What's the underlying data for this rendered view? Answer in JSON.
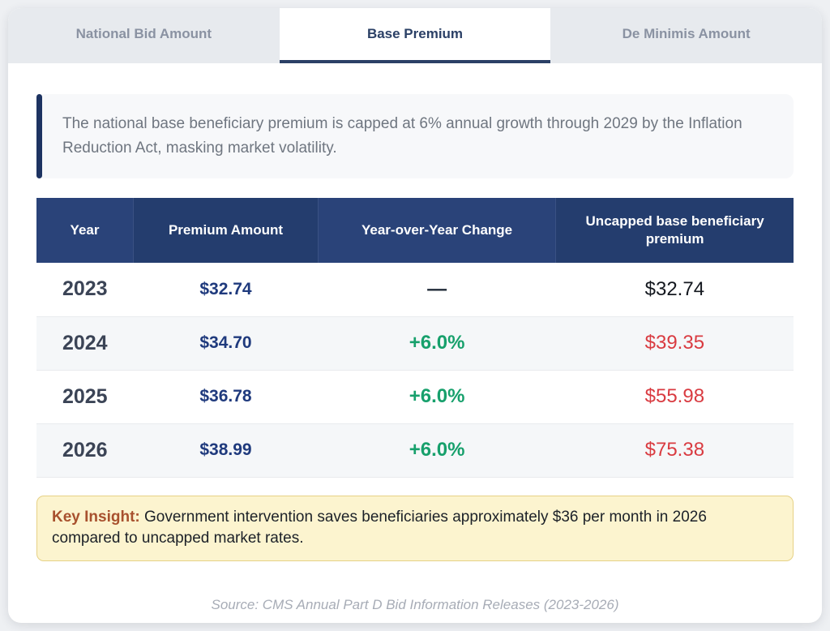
{
  "tabs": [
    {
      "label": "National Bid Amount",
      "active": false
    },
    {
      "label": "Base Premium",
      "active": true
    },
    {
      "label": "De Minimis Amount",
      "active": false
    }
  ],
  "callout": {
    "text": "The national base beneficiary premium is capped at 6% annual growth through 2029 by the Inflation Reduction Act, masking market volatility."
  },
  "table": {
    "columns": [
      "Year",
      "Premium Amount",
      "Year-over-Year Change",
      "Uncapped base beneficiary premium"
    ],
    "rows": [
      {
        "year": "2023",
        "premium": "$32.74",
        "yoy": "—",
        "yoy_style": "none",
        "uncapped": "$32.74",
        "uncapped_style": "neutral"
      },
      {
        "year": "2024",
        "premium": "$34.70",
        "yoy": "+6.0%",
        "yoy_style": "up",
        "uncapped": "$39.35",
        "uncapped_style": "red"
      },
      {
        "year": "2025",
        "premium": "$36.78",
        "yoy": "+6.0%",
        "yoy_style": "up",
        "uncapped": "$55.98",
        "uncapped_style": "red"
      },
      {
        "year": "2026",
        "premium": "$38.99",
        "yoy": "+6.0%",
        "yoy_style": "up",
        "uncapped": "$75.38",
        "uncapped_style": "red"
      }
    ]
  },
  "insight": {
    "label": "Key Insight:",
    "text": " Government intervention saves beneficiaries approximately $36 per month in 2026 compared to uncapped market rates."
  },
  "source": "Source: CMS Annual Part D Bid Information Releases (2023-2026)",
  "colors": {
    "header_navy": "#243d6e",
    "header_navy_alt": "#2a4379",
    "accent_navy": "#2b4066",
    "premium_navy": "#1f3a7d",
    "positive_green": "#17a06c",
    "alert_red": "#d93b41",
    "insight_bg": "#fcf4cf",
    "insight_border": "#e6d186",
    "insight_label": "#a8512e"
  }
}
